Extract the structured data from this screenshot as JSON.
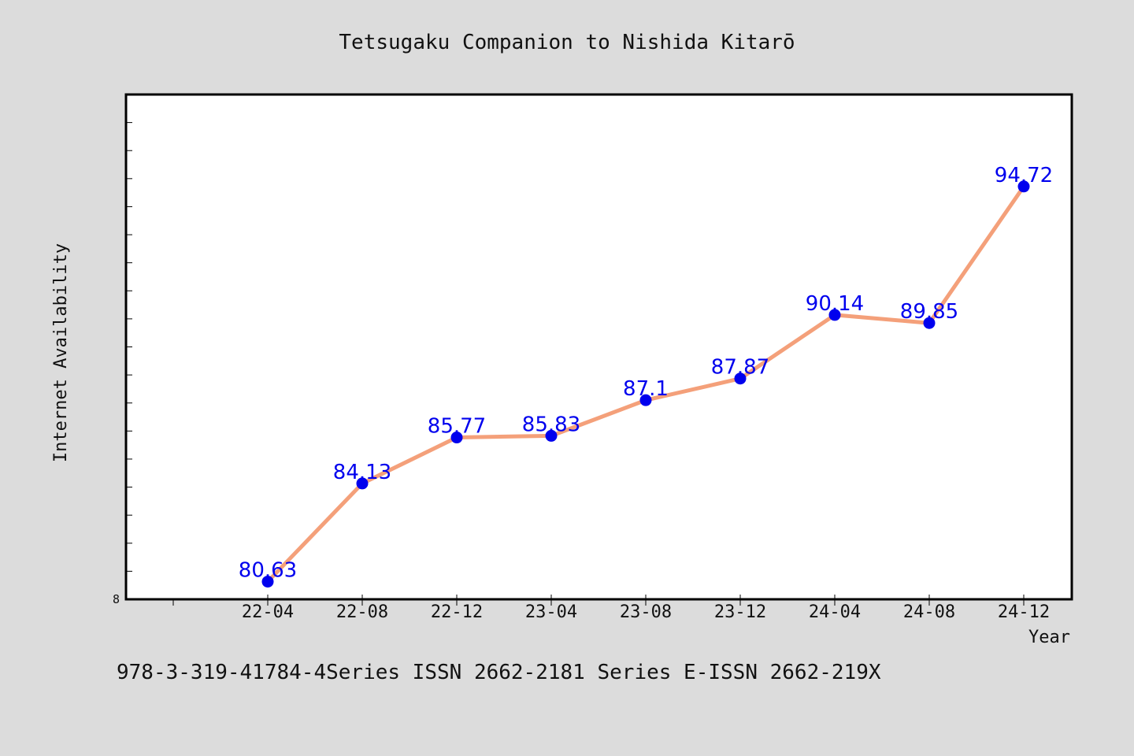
{
  "chart_data": {
    "type": "line",
    "title": "Tetsugaku Companion to Nishida Kitarō",
    "xlabel": "Year",
    "ylabel": "Internet Availability",
    "categories": [
      "22-04",
      "22-08",
      "22-12",
      "23-04",
      "23-08",
      "23-12",
      "24-04",
      "24-08",
      "24-12"
    ],
    "series": [
      {
        "values": [
          80.63,
          84.13,
          85.77,
          85.83,
          87.1,
          87.87,
          90.14,
          89.85,
          94.72
        ],
        "labels": [
          "80.63",
          "84.13",
          "85.77",
          "85.83",
          "87.1",
          "87.87",
          "90.14",
          "89.85",
          "94.72"
        ]
      }
    ],
    "ylim": [
      80.0,
      98.0
    ],
    "y_tick_labels": [
      "8"
    ],
    "grid": false,
    "legend": "none",
    "colors": {
      "line": "#f4a07a",
      "marker": "#0000ee",
      "data_label": "#0000ee",
      "plot_background": "#ffffff",
      "page_background": "#dcdcdc"
    }
  },
  "footer": {
    "text": "978-3-319-41784-4Series ISSN 2662-2181 Series E-ISSN 2662-219X"
  }
}
